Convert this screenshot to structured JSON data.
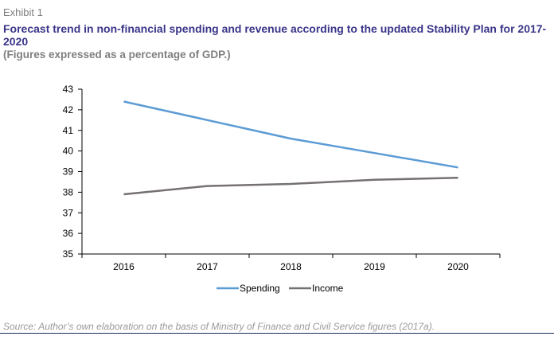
{
  "header": {
    "exhibit": "Exhibit 1",
    "title": "Forecast trend in non-financial spending and revenue according to the updated Stability Plan for 2017-2020",
    "subtitle": "(Figures expressed as a percentage of GDP.)"
  },
  "chart_data": {
    "type": "line",
    "title": "",
    "xlabel": "",
    "ylabel": "",
    "categories": [
      "2016",
      "2017",
      "2018",
      "2019",
      "2020"
    ],
    "ylim": [
      35,
      43
    ],
    "yticks": [
      35,
      36,
      37,
      38,
      39,
      40,
      41,
      42,
      43
    ],
    "grid": false,
    "legend_position": "bottom",
    "series": [
      {
        "name": "Spending",
        "color": "#5b9bd5",
        "values": [
          42.4,
          41.5,
          40.6,
          39.9,
          39.2
        ]
      },
      {
        "name": "Income",
        "color": "#767171",
        "values": [
          37.9,
          38.3,
          38.4,
          38.6,
          38.7
        ]
      }
    ]
  },
  "footer": {
    "source": "Source: Author’s own elaboration on the basis of Ministry of Finance and Civil Service figures (2017a)."
  }
}
